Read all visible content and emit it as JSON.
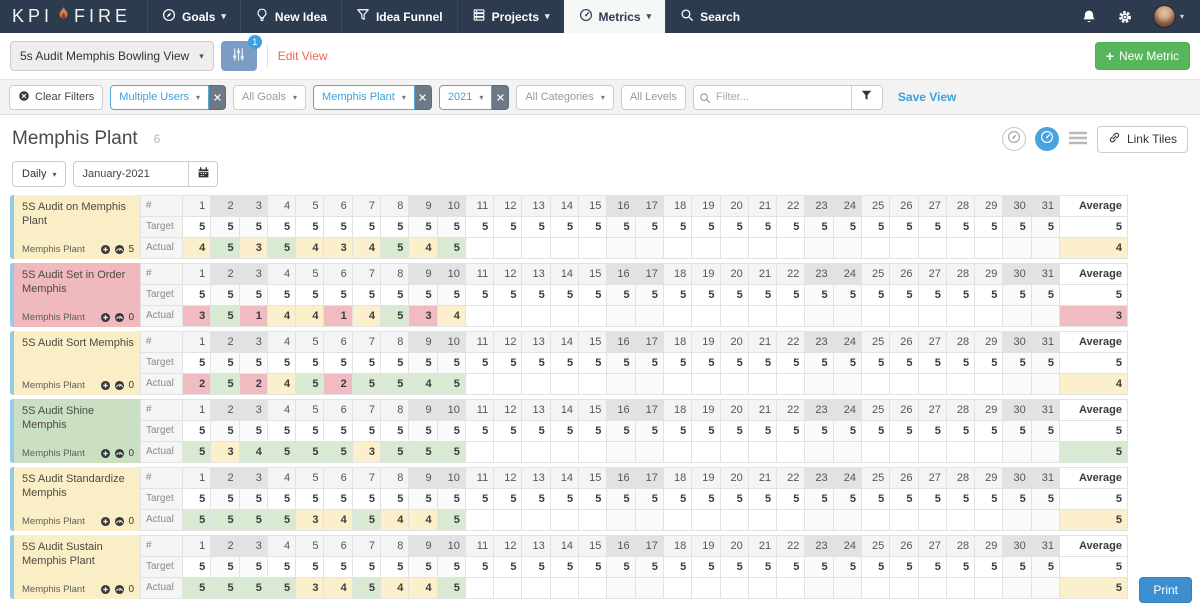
{
  "nav": {
    "logo_kpi": "KPI",
    "logo_fire": "FIRE",
    "items": [
      {
        "label": "Goals",
        "icon": "compass-icon",
        "caret": true,
        "active": false
      },
      {
        "label": "New Idea",
        "icon": "lightbulb-icon",
        "caret": false,
        "active": false
      },
      {
        "label": "Idea Funnel",
        "icon": "funnel-icon",
        "caret": false,
        "active": false
      },
      {
        "label": "Projects",
        "icon": "projects-icon",
        "caret": true,
        "active": false
      },
      {
        "label": "Metrics",
        "icon": "gauge-icon",
        "caret": true,
        "active": true
      },
      {
        "label": "Search",
        "icon": "search-icon",
        "caret": false,
        "active": false
      }
    ]
  },
  "view_bar": {
    "view_select_value": "5s Audit Memphis Bowling View",
    "filter_button_badge": "1",
    "edit_view_label": "Edit View",
    "new_metric_label": "New Metric"
  },
  "filter_bar": {
    "clear_filters_label": "Clear Filters",
    "selects": [
      {
        "value": "Multiple Users",
        "active": true,
        "removable": true
      },
      {
        "value": "All Goals",
        "active": false,
        "removable": false
      },
      {
        "value": "Memphis Plant",
        "active": true,
        "removable": true
      },
      {
        "value": "2021",
        "active": true,
        "removable": true
      },
      {
        "value": "All Categories",
        "active": false,
        "removable": false
      }
    ],
    "all_levels_label": "All Levels",
    "filter_placeholder": "Filter...",
    "save_view_label": "Save View"
  },
  "page": {
    "title": "Memphis Plant",
    "metric_count": "6",
    "link_tiles_label": "Link Tiles",
    "period_value": "Daily",
    "date_value": "January-2021",
    "print_label": "Print"
  },
  "table": {
    "index_label": "#",
    "target_label": "Target",
    "actual_label": "Actual",
    "average_label": "Average",
    "day_count": 31,
    "weekend_days": [
      2,
      3,
      9,
      10,
      16,
      17,
      23,
      24,
      30,
      31
    ],
    "target_value": 5,
    "target_average": 5
  },
  "metrics": [
    {
      "name": "5S Audit on Memphis Plant",
      "owner": "Memphis Plant",
      "badge_count": "5",
      "tile_color": "yellow",
      "actuals": [
        {
          "day": 1,
          "value": 4,
          "status": "warn"
        },
        {
          "day": 2,
          "value": 5,
          "status": "good"
        },
        {
          "day": 3,
          "value": 3,
          "status": "warn"
        },
        {
          "day": 4,
          "value": 5,
          "status": "good"
        },
        {
          "day": 5,
          "value": 4,
          "status": "warn"
        },
        {
          "day": 6,
          "value": 3,
          "status": "warn"
        },
        {
          "day": 7,
          "value": 4,
          "status": "warn"
        },
        {
          "day": 8,
          "value": 5,
          "status": "good"
        },
        {
          "day": 9,
          "value": 4,
          "status": "warn"
        },
        {
          "day": 10,
          "value": 5,
          "status": "good"
        }
      ],
      "average": {
        "value": 4,
        "status": "warn"
      }
    },
    {
      "name": "5S Audit Set in Order Memphis",
      "owner": "Memphis Plant",
      "badge_count": "0",
      "tile_color": "red",
      "actuals": [
        {
          "day": 1,
          "value": 3,
          "status": "bad"
        },
        {
          "day": 2,
          "value": 5,
          "status": "good"
        },
        {
          "day": 3,
          "value": 1,
          "status": "bad"
        },
        {
          "day": 4,
          "value": 4,
          "status": "warn"
        },
        {
          "day": 5,
          "value": 4,
          "status": "warn"
        },
        {
          "day": 6,
          "value": 1,
          "status": "bad"
        },
        {
          "day": 7,
          "value": 4,
          "status": "warn"
        },
        {
          "day": 8,
          "value": 5,
          "status": "good"
        },
        {
          "day": 9,
          "value": 3,
          "status": "bad"
        },
        {
          "day": 10,
          "value": 4,
          "status": "warn"
        }
      ],
      "average": {
        "value": 3,
        "status": "bad"
      }
    },
    {
      "name": "5S Audit Sort Memphis",
      "owner": "Memphis Plant",
      "badge_count": "0",
      "tile_color": "yellow",
      "actuals": [
        {
          "day": 1,
          "value": 2,
          "status": "bad"
        },
        {
          "day": 2,
          "value": 5,
          "status": "good"
        },
        {
          "day": 3,
          "value": 2,
          "status": "bad"
        },
        {
          "day": 4,
          "value": 4,
          "status": "warn"
        },
        {
          "day": 5,
          "value": 5,
          "status": "good"
        },
        {
          "day": 6,
          "value": 2,
          "status": "bad"
        },
        {
          "day": 7,
          "value": 5,
          "status": "good"
        },
        {
          "day": 8,
          "value": 5,
          "status": "good"
        },
        {
          "day": 9,
          "value": 4,
          "status": "good"
        },
        {
          "day": 10,
          "value": 5,
          "status": "good"
        }
      ],
      "average": {
        "value": 4,
        "status": "warn"
      }
    },
    {
      "name": "5S Audit Shine Memphis",
      "owner": "Memphis Plant",
      "badge_count": "0",
      "tile_color": "green",
      "actuals": [
        {
          "day": 1,
          "value": 5,
          "status": "good"
        },
        {
          "day": 2,
          "value": 3,
          "status": "warn"
        },
        {
          "day": 3,
          "value": 4,
          "status": "good"
        },
        {
          "day": 4,
          "value": 5,
          "status": "good"
        },
        {
          "day": 5,
          "value": 5,
          "status": "good"
        },
        {
          "day": 6,
          "value": 5,
          "status": "good"
        },
        {
          "day": 7,
          "value": 3,
          "status": "warn"
        },
        {
          "day": 8,
          "value": 5,
          "status": "good"
        },
        {
          "day": 9,
          "value": 5,
          "status": "good"
        },
        {
          "day": 10,
          "value": 5,
          "status": "good"
        }
      ],
      "average": {
        "value": 5,
        "status": "good"
      }
    },
    {
      "name": "5S Audit Standardize Memphis",
      "owner": "Memphis Plant",
      "badge_count": "0",
      "tile_color": "yellow",
      "actuals": [
        {
          "day": 1,
          "value": 5,
          "status": "good"
        },
        {
          "day": 2,
          "value": 5,
          "status": "good"
        },
        {
          "day": 3,
          "value": 5,
          "status": "good"
        },
        {
          "day": 4,
          "value": 5,
          "status": "good"
        },
        {
          "day": 5,
          "value": 3,
          "status": "warn"
        },
        {
          "day": 6,
          "value": 4,
          "status": "warn"
        },
        {
          "day": 7,
          "value": 5,
          "status": "good"
        },
        {
          "day": 8,
          "value": 4,
          "status": "warn"
        },
        {
          "day": 9,
          "value": 4,
          "status": "warn"
        },
        {
          "day": 10,
          "value": 5,
          "status": "good"
        }
      ],
      "average": {
        "value": 5,
        "status": "warn"
      }
    },
    {
      "name": "5S Audit Sustain Memphis Plant",
      "owner": "Memphis Plant",
      "badge_count": "0",
      "tile_color": "yellow",
      "actuals": [
        {
          "day": 1,
          "value": 5,
          "status": "good"
        },
        {
          "day": 2,
          "value": 5,
          "status": "good"
        },
        {
          "day": 3,
          "value": 5,
          "status": "good"
        },
        {
          "day": 4,
          "value": 5,
          "status": "good"
        },
        {
          "day": 5,
          "value": 3,
          "status": "warn"
        },
        {
          "day": 6,
          "value": 4,
          "status": "warn"
        },
        {
          "day": 7,
          "value": 5,
          "status": "good"
        },
        {
          "day": 8,
          "value": 4,
          "status": "warn"
        },
        {
          "day": 9,
          "value": 4,
          "status": "warn"
        },
        {
          "day": 10,
          "value": 5,
          "status": "good"
        }
      ],
      "average": {
        "value": 5,
        "status": "warn"
      }
    }
  ],
  "colors": {
    "status_good": "#d9ead2",
    "status_warn": "#fbf0cb",
    "status_bad": "#f1bcc1",
    "tile_yellow": "#faeec6",
    "tile_red": "#f0b9be",
    "tile_green": "#cbe0c3",
    "accent_blue": "#3da0dc",
    "nav_dark": "#2d3b4e"
  }
}
